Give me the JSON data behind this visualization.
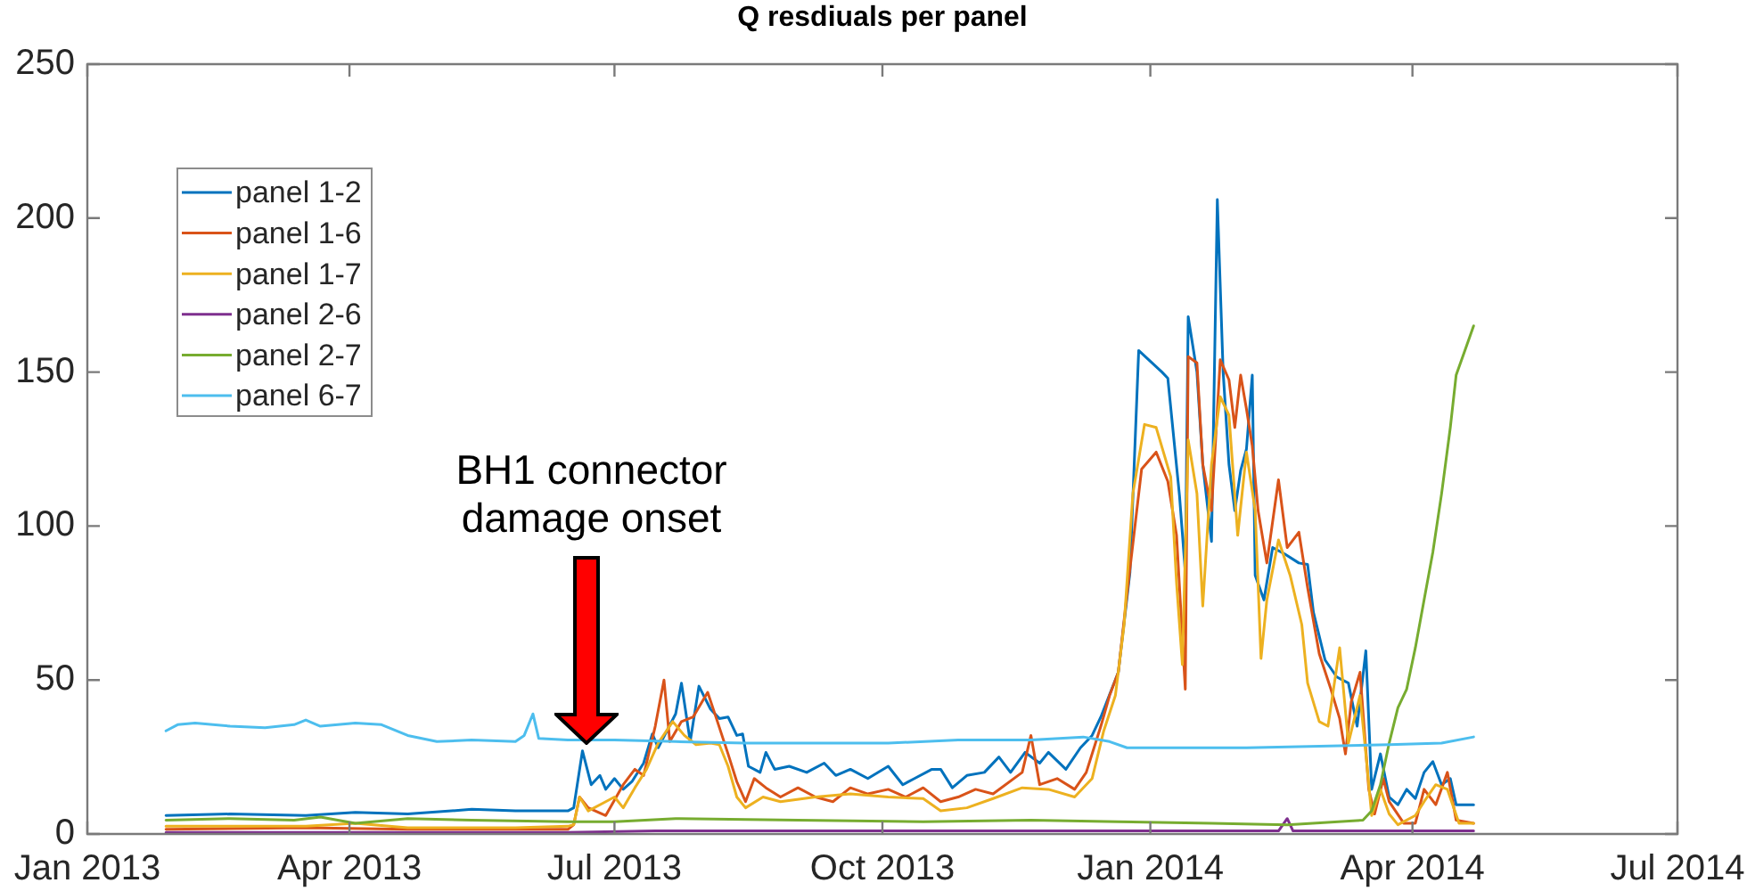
{
  "chart_data": {
    "type": "line",
    "title": "Q resdiuals per panel",
    "xlim": [
      "2013-01",
      "2014-07"
    ],
    "xticks": [
      {
        "value": "2013-01",
        "label": "Jan 2013"
      },
      {
        "value": "2013-04",
        "label": "Apr 2013"
      },
      {
        "value": "2013-07",
        "label": "Jul 2013"
      },
      {
        "value": "2013-10",
        "label": "Oct 2013"
      },
      {
        "value": "2014-01",
        "label": "Jan 2014"
      },
      {
        "value": "2014-04",
        "label": "Apr 2014"
      },
      {
        "value": "2014-07",
        "label": "Jul 2014"
      }
    ],
    "ylim": [
      0,
      250
    ],
    "yticks": [
      0,
      50,
      100,
      150,
      200,
      250
    ],
    "grid": false,
    "legend": "top left",
    "annotations": [
      "BH1 connector\ndamage onset"
    ],
    "series": [
      {
        "name": "panel 1-2",
        "color": "#0072bd",
        "x": [
          "2013-01-28",
          "2013-02-19",
          "2013-03-17",
          "2013-04-03",
          "2013-04-21",
          "2013-05-13",
          "2013-05-28",
          "2013-06-15",
          "2013-06-17",
          "2013-06-20",
          "2013-06-23",
          "2013-06-26",
          "2013-06-28",
          "2013-07-01",
          "2013-07-04",
          "2013-07-07",
          "2013-07-11",
          "2013-07-14",
          "2013-07-16",
          "2013-07-22",
          "2013-07-24",
          "2013-07-27",
          "2013-07-30",
          "2013-08-03",
          "2013-08-06",
          "2013-08-09",
          "2013-08-12",
          "2013-08-14",
          "2013-08-16",
          "2013-08-20",
          "2013-08-22",
          "2013-08-25",
          "2013-08-30",
          "2013-09-05",
          "2013-09-11",
          "2013-09-15",
          "2013-09-20",
          "2013-09-26",
          "2013-10-03",
          "2013-10-08",
          "2013-10-12",
          "2013-10-18",
          "2013-10-21",
          "2013-10-25",
          "2013-10-30",
          "2013-11-05",
          "2013-11-10",
          "2013-11-14",
          "2013-11-19",
          "2013-11-24",
          "2013-11-27",
          "2013-12-03",
          "2013-12-08",
          "2013-12-12",
          "2013-12-15",
          "2013-12-21",
          "2013-12-25",
          "2013-12-28",
          "2014-01-05",
          "2014-01-07",
          "2014-01-11",
          "2014-01-13",
          "2014-01-14",
          "2014-01-17",
          "2014-01-19",
          "2014-01-22",
          "2014-01-24",
          "2014-01-26",
          "2014-01-28",
          "2014-01-30",
          "2014-02-01",
          "2014-02-03",
          "2014-02-05",
          "2014-02-06",
          "2014-02-09",
          "2014-02-12",
          "2014-02-16",
          "2014-02-21",
          "2014-02-24",
          "2014-02-26",
          "2014-03-02",
          "2014-03-06",
          "2014-03-10",
          "2014-03-13",
          "2014-03-16",
          "2014-03-18",
          "2014-03-21",
          "2014-03-24",
          "2014-03-27",
          "2014-03-30",
          "2014-04-02",
          "2014-04-05",
          "2014-04-08",
          "2014-04-11",
          "2014-04-14",
          "2014-04-16",
          "2014-04-22"
        ],
        "values": [
          6,
          6.5,
          6,
          7,
          6.5,
          8,
          7.5,
          7.5,
          8.5,
          27,
          16,
          19,
          14.5,
          18,
          14.5,
          17,
          23,
          32.5,
          28,
          39,
          49,
          30,
          48,
          40.5,
          37.5,
          38,
          32,
          32.5,
          22,
          20,
          26.5,
          21,
          22,
          20,
          23,
          19,
          21,
          18,
          22,
          16,
          18,
          21,
          21,
          15,
          19,
          20,
          25,
          20,
          26.5,
          23,
          26.5,
          21,
          28,
          32,
          38,
          52.5,
          85,
          157,
          150,
          148,
          110,
          85,
          168,
          150,
          120,
          95,
          206,
          150,
          120,
          105,
          118,
          125,
          149,
          84,
          76,
          93,
          91,
          88,
          87.5,
          72,
          56.5,
          51,
          49,
          35,
          59.5,
          14.5,
          26,
          12,
          9.5,
          14.5,
          11.5,
          20,
          23.5,
          16,
          18,
          9.5,
          9.5
        ]
      },
      {
        "name": "panel 1-6",
        "color": "#d95319",
        "x": [
          "2013-01-28",
          "2013-03-17",
          "2013-04-21",
          "2013-05-28",
          "2013-06-15",
          "2013-06-17",
          "2013-06-19",
          "2013-06-22",
          "2013-06-28",
          "2013-07-04",
          "2013-07-08",
          "2013-07-11",
          "2013-07-15",
          "2013-07-18",
          "2013-07-20",
          "2013-07-24",
          "2013-07-28",
          "2013-08-02",
          "2013-08-05",
          "2013-08-09",
          "2013-08-12",
          "2013-08-15",
          "2013-08-18",
          "2013-08-22",
          "2013-08-27",
          "2013-09-02",
          "2013-09-08",
          "2013-09-14",
          "2013-09-20",
          "2013-09-26",
          "2013-10-03",
          "2013-10-09",
          "2013-10-15",
          "2013-10-21",
          "2013-10-27",
          "2013-11-02",
          "2013-11-08",
          "2013-11-18",
          "2013-11-21",
          "2013-11-24",
          "2013-11-30",
          "2013-12-06",
          "2013-12-10",
          "2013-12-15",
          "2013-12-18",
          "2013-12-21",
          "2013-12-24",
          "2013-12-29",
          "2014-01-03",
          "2014-01-07",
          "2014-01-10",
          "2014-01-13",
          "2014-01-14",
          "2014-01-17",
          "2014-01-19",
          "2014-01-22",
          "2014-01-25",
          "2014-01-28",
          "2014-01-30",
          "2014-02-01",
          "2014-02-03",
          "2014-02-05",
          "2014-02-07",
          "2014-02-10",
          "2014-02-14",
          "2014-02-17",
          "2014-02-21",
          "2014-02-24",
          "2014-02-28",
          "2014-03-04",
          "2014-03-07",
          "2014-03-09",
          "2014-03-11",
          "2014-03-14",
          "2014-03-17",
          "2014-03-19",
          "2014-03-22",
          "2014-03-24",
          "2014-03-29",
          "2014-04-02",
          "2014-04-05",
          "2014-04-09",
          "2014-04-13",
          "2014-04-16",
          "2014-04-22"
        ],
        "values": [
          1.5,
          2,
          1.5,
          1.5,
          1.5,
          3,
          12,
          8.5,
          6,
          16,
          21,
          19,
          35,
          50,
          30,
          36.5,
          38,
          46,
          37.5,
          26,
          17,
          10.5,
          18,
          15,
          12,
          15,
          12,
          10.5,
          15,
          13,
          14.5,
          12,
          15,
          10.5,
          12,
          14.5,
          13,
          20,
          32,
          16,
          18,
          14.5,
          20,
          35,
          45,
          52.5,
          78,
          118.5,
          124,
          114.5,
          97,
          47,
          155,
          153,
          120,
          105,
          154,
          147.5,
          132,
          149,
          138,
          126,
          105,
          88,
          115,
          93,
          98,
          80,
          58.5,
          47,
          37.5,
          26,
          43,
          52.5,
          14.5,
          6.5,
          18,
          10.5,
          3.5,
          3.5,
          14.5,
          9.5,
          20,
          4.5,
          3.5
        ]
      },
      {
        "name": "panel 1-7",
        "color": "#edb120",
        "x": [
          "2013-01-28",
          "2013-03-17",
          "2013-04-03",
          "2013-04-21",
          "2013-05-28",
          "2013-06-15",
          "2013-06-17",
          "2013-06-19",
          "2013-06-22",
          "2013-06-28",
          "2013-07-01",
          "2013-07-04",
          "2013-07-08",
          "2013-07-12",
          "2013-07-16",
          "2013-07-21",
          "2013-07-25",
          "2013-07-29",
          "2013-08-03",
          "2013-08-06",
          "2013-08-09",
          "2013-08-12",
          "2013-08-15",
          "2013-08-21",
          "2013-08-27",
          "2013-09-08",
          "2013-09-20",
          "2013-10-03",
          "2013-10-15",
          "2013-10-21",
          "2013-10-30",
          "2013-11-08",
          "2013-11-18",
          "2013-11-27",
          "2013-12-06",
          "2013-12-12",
          "2013-12-16",
          "2013-12-20",
          "2013-12-23",
          "2013-12-26",
          "2013-12-30",
          "2014-01-03",
          "2014-01-08",
          "2014-01-10",
          "2014-01-12",
          "2014-01-14",
          "2014-01-17",
          "2014-01-19",
          "2014-01-22",
          "2014-01-25",
          "2014-01-28",
          "2014-01-31",
          "2014-02-03",
          "2014-02-06",
          "2014-02-08",
          "2014-02-10",
          "2014-02-14",
          "2014-02-18",
          "2014-02-22",
          "2014-02-24",
          "2014-02-28",
          "2014-03-03",
          "2014-03-07",
          "2014-03-10",
          "2014-03-14",
          "2014-03-16",
          "2014-03-18",
          "2014-03-21",
          "2014-03-24",
          "2014-03-27",
          "2014-04-02",
          "2014-04-05",
          "2014-04-09",
          "2014-04-13",
          "2014-04-17",
          "2014-04-22"
        ],
        "values": [
          2.5,
          2.5,
          3.5,
          2,
          2,
          2.5,
          3,
          12,
          7.5,
          10.5,
          12,
          8.5,
          15,
          21,
          29.5,
          36.5,
          32,
          29,
          29.5,
          29,
          22,
          12,
          8.5,
          12,
          10.5,
          12,
          13,
          12,
          11.5,
          7.5,
          8.5,
          11.5,
          15,
          14.5,
          12,
          18,
          33.5,
          45,
          68,
          110.5,
          133,
          132,
          116,
          81.5,
          55,
          128,
          110.5,
          74,
          120,
          142,
          136,
          97,
          124,
          105,
          57,
          76,
          95.5,
          84,
          68,
          49,
          36.5,
          35,
          60.5,
          29.5,
          45,
          26,
          6,
          14.5,
          6.5,
          3,
          6,
          10.5,
          16,
          14.5,
          3.5,
          3.5
        ]
      },
      {
        "name": "panel 2-6",
        "color": "#7e2f8e",
        "x": [
          "2013-01-28",
          "2013-06-15",
          "2013-07-15",
          "2013-12-01",
          "2014-02-14",
          "2014-02-17",
          "2014-02-19",
          "2014-04-22"
        ],
        "values": [
          0.5,
          0.5,
          1,
          1,
          1,
          5,
          1,
          1
        ]
      },
      {
        "name": "panel 2-7",
        "color": "#77ac30",
        "x": [
          "2013-01-28",
          "2013-02-19",
          "2013-03-13",
          "2013-03-22",
          "2013-04-03",
          "2013-04-21",
          "2013-05-13",
          "2013-06-15",
          "2013-07-01",
          "2013-07-22",
          "2013-09-02",
          "2013-10-15",
          "2013-11-21",
          "2013-12-21",
          "2014-01-22",
          "2014-02-17",
          "2014-03-15",
          "2014-03-18",
          "2014-03-21",
          "2014-03-24",
          "2014-03-27",
          "2014-03-30",
          "2014-04-02",
          "2014-04-05",
          "2014-04-08",
          "2014-04-11",
          "2014-04-14",
          "2014-04-16",
          "2014-04-19",
          "2014-04-22"
        ],
        "values": [
          4.5,
          5,
          4.5,
          5.5,
          3.5,
          5,
          4.5,
          4,
          4,
          5,
          4.5,
          4,
          4.5,
          4,
          3.5,
          3,
          4.5,
          7.5,
          16,
          29.5,
          41,
          47,
          60.5,
          76,
          91.5,
          110.5,
          132,
          149,
          157,
          165
        ]
      },
      {
        "name": "panel 6-7",
        "color": "#4dbeee",
        "x": [
          "2013-01-28",
          "2013-02-01",
          "2013-02-07",
          "2013-02-19",
          "2013-03-03",
          "2013-03-13",
          "2013-03-17",
          "2013-03-22",
          "2013-04-03",
          "2013-04-12",
          "2013-04-21",
          "2013-05-01",
          "2013-05-13",
          "2013-05-28",
          "2013-05-31",
          "2013-06-03",
          "2013-06-05",
          "2013-06-15",
          "2013-07-01",
          "2013-07-22",
          "2013-08-15",
          "2013-09-08",
          "2013-10-03",
          "2013-10-27",
          "2013-11-21",
          "2013-12-09",
          "2013-12-18",
          "2013-12-24",
          "2014-01-10",
          "2014-02-03",
          "2014-02-28",
          "2014-03-24",
          "2014-04-11",
          "2014-04-22"
        ],
        "values": [
          33.5,
          35.5,
          36,
          35,
          34.5,
          35.5,
          37,
          35,
          36,
          35.5,
          32,
          30,
          30.5,
          30,
          32,
          39,
          31,
          30.5,
          30.5,
          30,
          29.5,
          29.5,
          29.5,
          30.5,
          30.5,
          31.5,
          30,
          28,
          28,
          28,
          28.5,
          29,
          29.5,
          31.5
        ]
      }
    ]
  }
}
